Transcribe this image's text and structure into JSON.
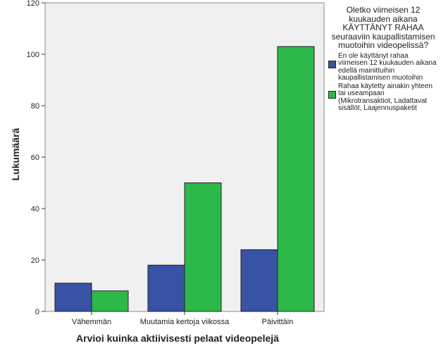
{
  "chart_data": {
    "type": "bar",
    "xlabel": "Arvioi kuinka aktiivisesti pelaat videopelejä",
    "ylabel": "Lukumäärä",
    "ylim": [
      0,
      120
    ],
    "yticks": [
      0,
      20,
      40,
      60,
      80,
      100,
      120
    ],
    "grid": false,
    "legend_placement": "right",
    "categories": [
      "Vähemmän",
      "Muutamia kertoja viikossa",
      "Päivittäin"
    ],
    "legend_title": "Oletko viimeisen 12 kuukauden aikana KÄYTTÄNYT RAHAA seuraaviin kaupallistamisen muotoihin videopelissä?",
    "series": [
      {
        "name": "En ole käyttänyt rahaa viimeisen 12 kuukauden aikana edellä mainittuihin kaupallistamisen muotoihin",
        "values": [
          11,
          18,
          24
        ],
        "color": "#3953a4"
      },
      {
        "name": "Rahaa käytetty ainakin yhteen tai useampaan (Mikrotransaktiot, Ladattavat sisällöt, Laajennuspaketit",
        "values": [
          8,
          50,
          103
        ],
        "color": "#2db84a"
      }
    ]
  }
}
